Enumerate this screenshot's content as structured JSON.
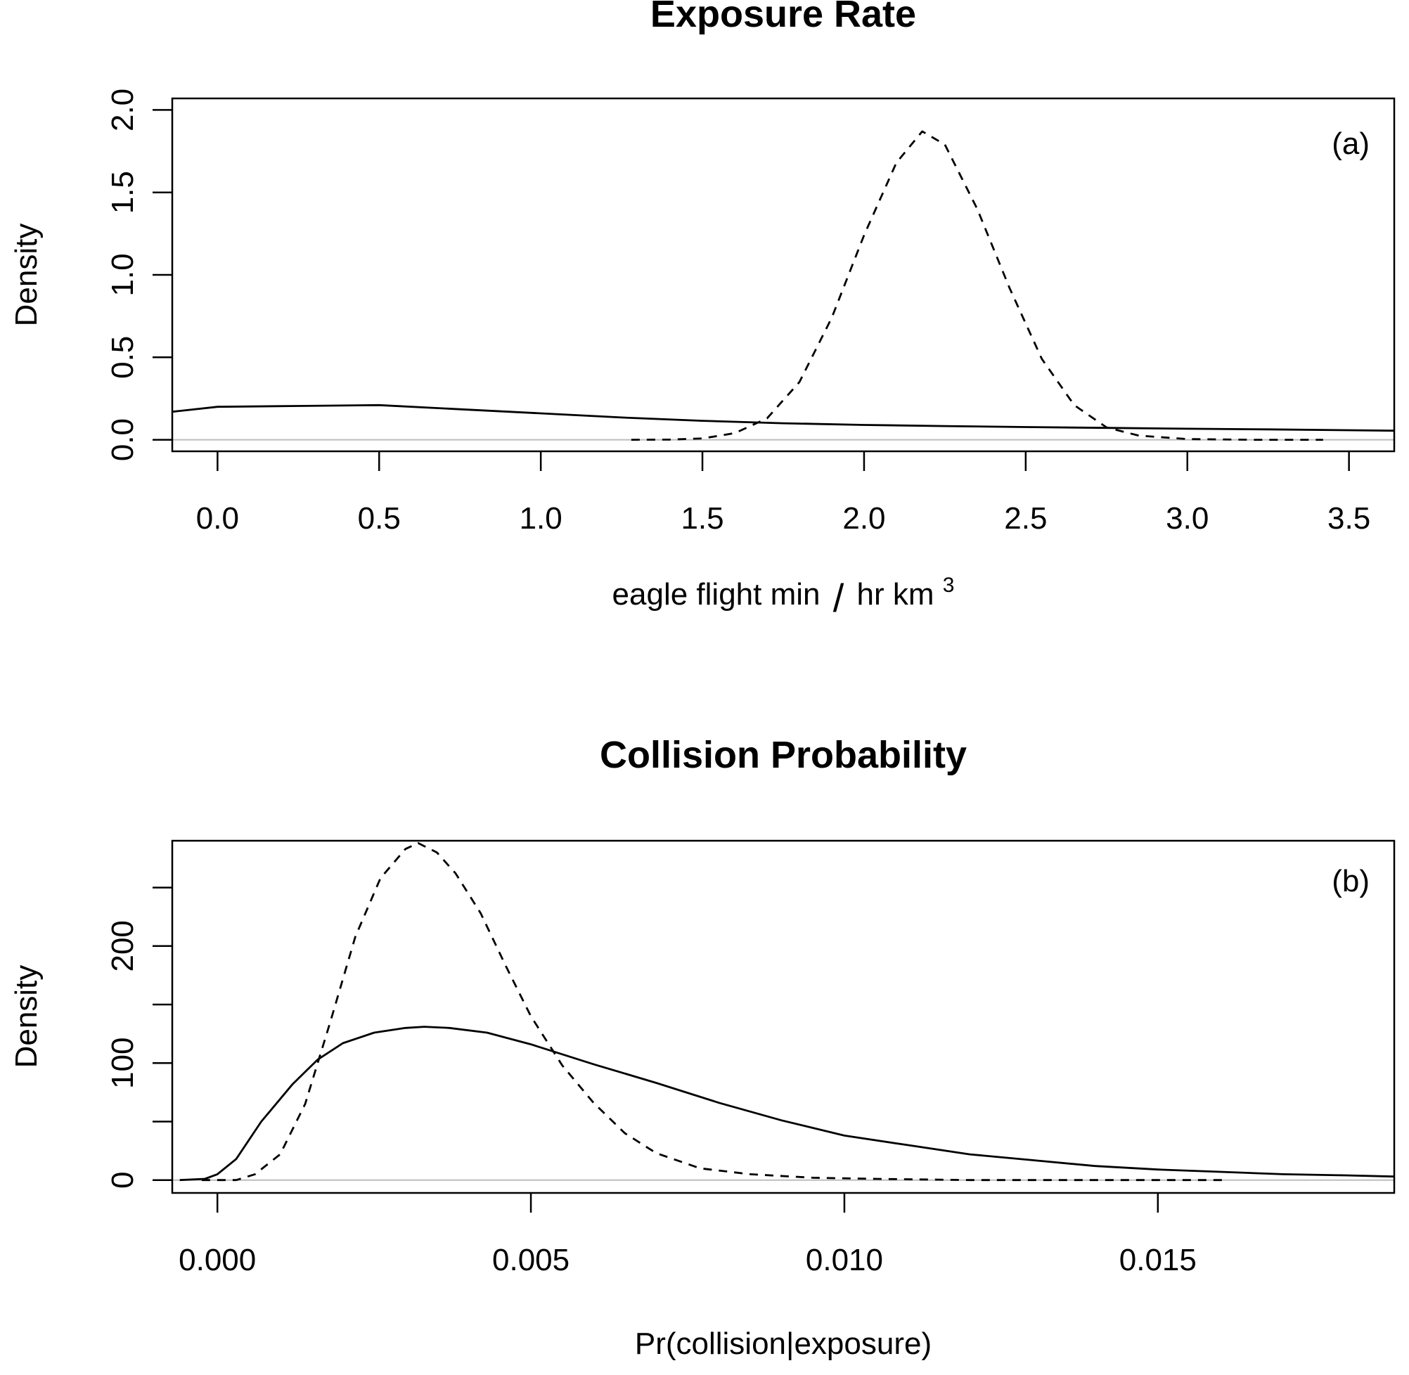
{
  "chart_data": [
    {
      "type": "line",
      "panel": "a",
      "title": "Exposure Rate",
      "tag": "(a)",
      "xlabel_main": "eagle flight min",
      "xlabel_slash": "/",
      "xlabel_unit": "hr km",
      "xlabel_sup": "3",
      "ylabel": "Density",
      "xlim": [
        -0.14,
        3.64
      ],
      "ylim": [
        -0.07,
        2.07
      ],
      "xticks": [
        0.0,
        0.5,
        1.0,
        1.5,
        2.0,
        2.5,
        3.0,
        3.5
      ],
      "xtick_labels": [
        "0.0",
        "0.5",
        "1.0",
        "1.5",
        "2.0",
        "2.5",
        "3.0",
        "3.5"
      ],
      "yticks": [
        0.0,
        0.5,
        1.0,
        1.5,
        2.0
      ],
      "ytick_labels": [
        "0.0",
        "0.5",
        "1.0",
        "1.5",
        "2.0"
      ],
      "grid": false,
      "zero_line": true,
      "series": [
        {
          "style": "solid",
          "x": [
            -0.14,
            0.0,
            0.25,
            0.5,
            0.75,
            1.0,
            1.25,
            1.5,
            1.75,
            2.0,
            2.25,
            2.5,
            2.75,
            3.0,
            3.25,
            3.5,
            3.64
          ],
          "y": [
            0.17,
            0.2,
            0.205,
            0.21,
            0.185,
            0.16,
            0.135,
            0.115,
            0.1,
            0.09,
            0.083,
            0.077,
            0.072,
            0.067,
            0.063,
            0.058,
            0.055
          ]
        },
        {
          "style": "dashed",
          "x": [
            1.28,
            1.4,
            1.5,
            1.6,
            1.7,
            1.8,
            1.9,
            2.0,
            2.1,
            2.18,
            2.25,
            2.35,
            2.45,
            2.55,
            2.65,
            2.75,
            2.85,
            3.0,
            3.2,
            3.42
          ],
          "y": [
            0.0,
            0.001,
            0.008,
            0.04,
            0.13,
            0.35,
            0.74,
            1.24,
            1.68,
            1.87,
            1.79,
            1.4,
            0.92,
            0.49,
            0.21,
            0.075,
            0.025,
            0.004,
            0.0,
            0.0
          ]
        }
      ]
    },
    {
      "type": "line",
      "panel": "b",
      "title": "Collision Probability",
      "tag": "(b)",
      "xlabel": "Pr(collision|exposure)",
      "ylabel": "Density",
      "xlim": [
        -0.00072,
        0.01877
      ],
      "ylim": [
        -11,
        290
      ],
      "xticks": [
        0.0,
        0.005,
        0.01,
        0.015
      ],
      "xtick_labels": [
        "0.000",
        "0.005",
        "0.010",
        "0.015"
      ],
      "yticks": [
        0,
        50,
        100,
        150,
        200,
        250
      ],
      "ytick_labels": [
        "0",
        "",
        "100",
        "",
        "200",
        ""
      ],
      "grid": false,
      "zero_line": true,
      "series": [
        {
          "style": "solid",
          "x": [
            -0.0006,
            -0.0002,
            0.0,
            0.0003,
            0.0007,
            0.0012,
            0.0016,
            0.002,
            0.0025,
            0.003,
            0.0033,
            0.0037,
            0.0043,
            0.005,
            0.006,
            0.007,
            0.008,
            0.009,
            0.01,
            0.011,
            0.012,
            0.013,
            0.014,
            0.015,
            0.016,
            0.017,
            0.018,
            0.01877
          ],
          "y": [
            0,
            1,
            5,
            18,
            50,
            82,
            103,
            117,
            126,
            130,
            131,
            130,
            126,
            116,
            99,
            83,
            66,
            51,
            38,
            30,
            22,
            17,
            12,
            9,
            7,
            5,
            4,
            3
          ]
        },
        {
          "style": "dashed",
          "x": [
            -0.00025,
            0.0003,
            0.0006,
            0.001,
            0.0014,
            0.0018,
            0.0022,
            0.0026,
            0.003,
            0.0032,
            0.0035,
            0.0038,
            0.0042,
            0.0046,
            0.005,
            0.0055,
            0.006,
            0.0065,
            0.007,
            0.0077,
            0.0085,
            0.0095,
            0.0105,
            0.012,
            0.014,
            0.0161
          ],
          "y": [
            0,
            0,
            5,
            22,
            65,
            135,
            208,
            258,
            283,
            288,
            280,
            262,
            228,
            183,
            140,
            98,
            66,
            40,
            23,
            10,
            5,
            2,
            1,
            0,
            0,
            0
          ]
        }
      ]
    }
  ]
}
